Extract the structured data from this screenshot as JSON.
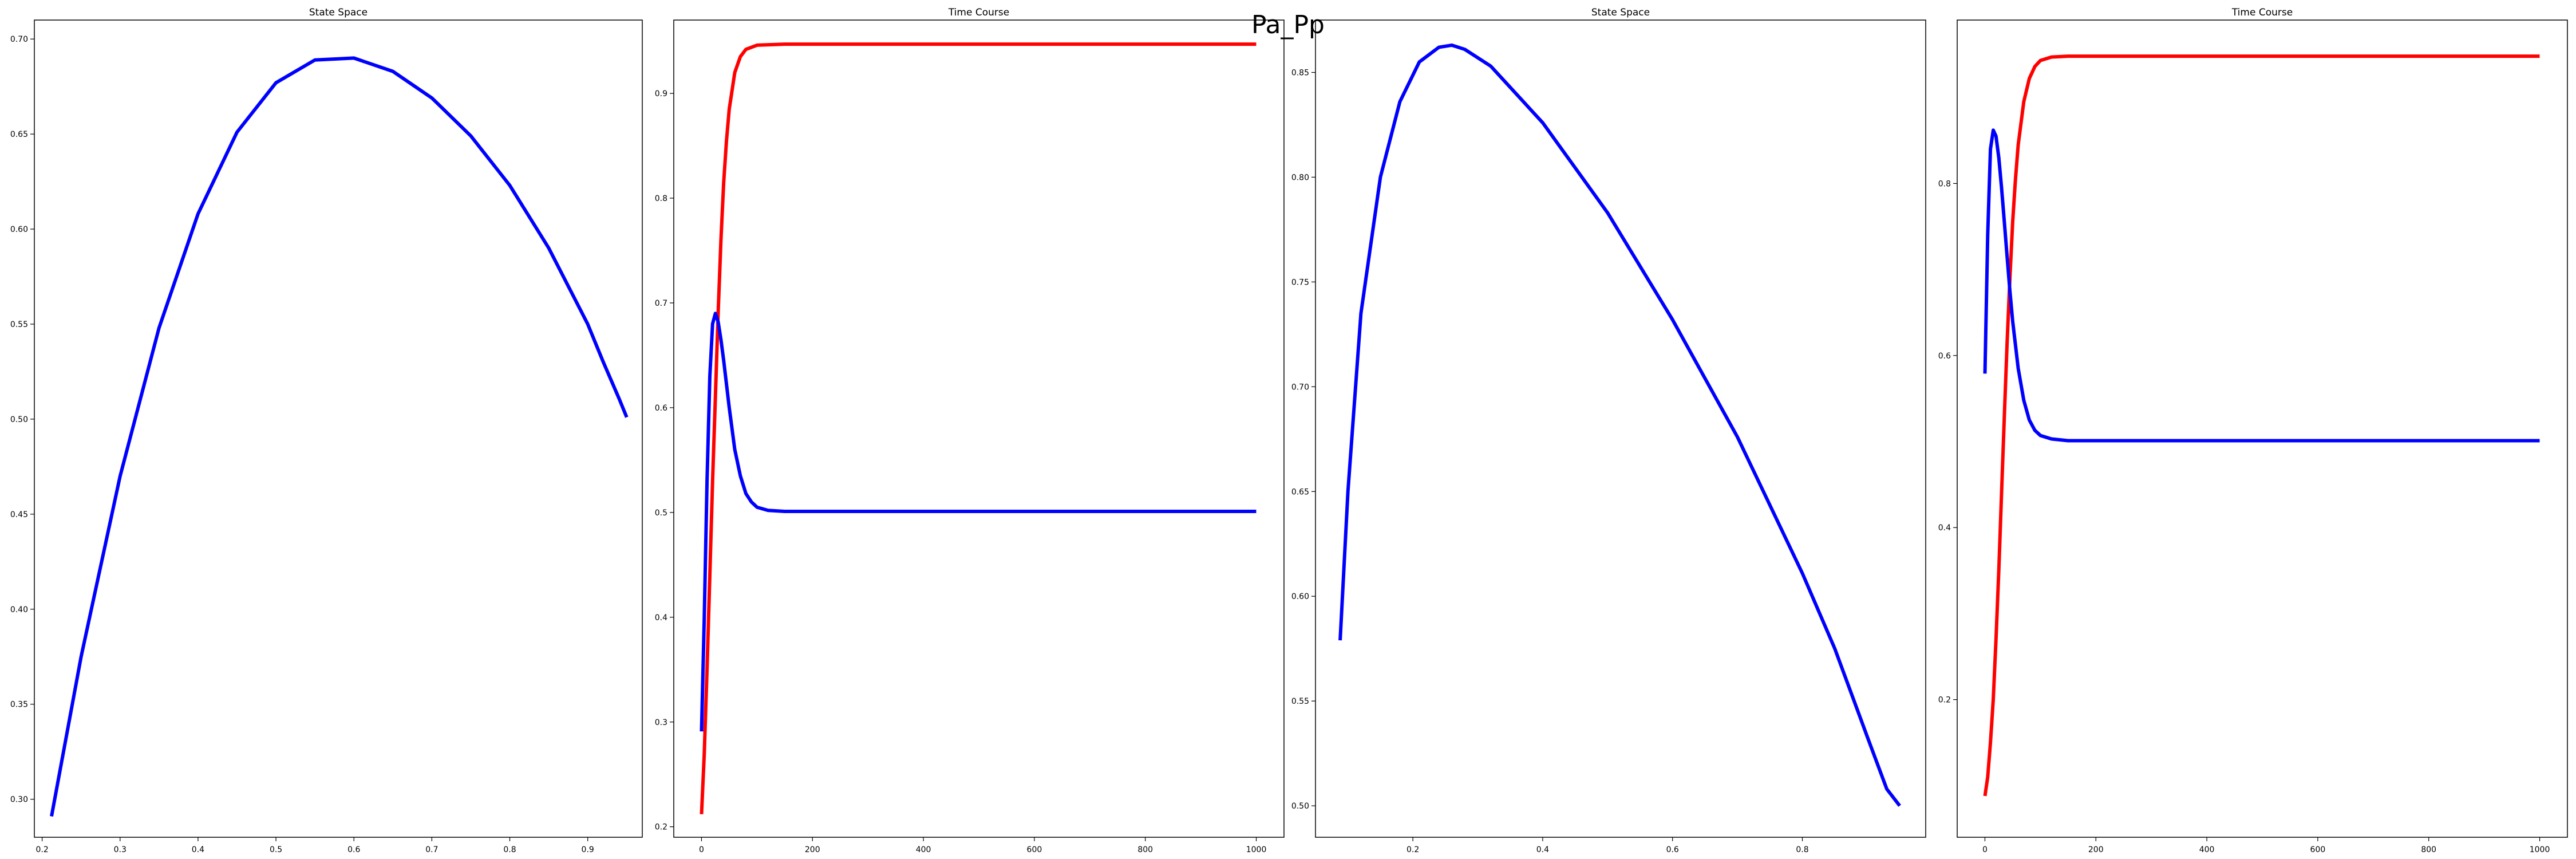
{
  "figure": {
    "suptitle": "Pa_Pp"
  },
  "chart_data": [
    {
      "type": "line",
      "title": "State Space",
      "xlabel": "",
      "ylabel": "",
      "xlim": [
        0.19,
        0.97
      ],
      "ylim": [
        0.28,
        0.71
      ],
      "x_ticks": [
        0.2,
        0.3,
        0.4,
        0.5,
        0.6,
        0.7,
        0.8,
        0.9
      ],
      "y_ticks": [
        0.3,
        0.35,
        0.4,
        0.45,
        0.5,
        0.55,
        0.6,
        0.65,
        0.7
      ],
      "x_tick_labels": [
        "0.2",
        "0.3",
        "0.4",
        "0.5",
        "0.6",
        "0.7",
        "0.8",
        "0.9"
      ],
      "y_tick_labels": [
        "0.30",
        "0.35",
        "0.40",
        "0.45",
        "0.50",
        "0.55",
        "0.60",
        "0.65",
        "0.70"
      ],
      "series": [
        {
          "color": "#0000ff",
          "x": [
            0.212,
            0.25,
            0.3,
            0.35,
            0.4,
            0.45,
            0.5,
            0.55,
            0.6,
            0.65,
            0.7,
            0.75,
            0.8,
            0.85,
            0.9,
            0.92,
            0.94,
            0.95
          ],
          "y": [
            0.291,
            0.375,
            0.47,
            0.548,
            0.608,
            0.651,
            0.677,
            0.689,
            0.69,
            0.683,
            0.669,
            0.649,
            0.623,
            0.59,
            0.55,
            0.53,
            0.511,
            0.501
          ]
        }
      ]
    },
    {
      "type": "line",
      "title": "Time Course",
      "xlabel": "",
      "ylabel": "",
      "xlim": [
        -50,
        1050
      ],
      "ylim": [
        0.19,
        0.97
      ],
      "x_ticks": [
        0,
        200,
        400,
        600,
        800,
        1000
      ],
      "y_ticks": [
        0.2,
        0.3,
        0.4,
        0.5,
        0.6,
        0.7,
        0.8,
        0.9
      ],
      "x_tick_labels": [
        "0",
        "200",
        "400",
        "600",
        "800",
        "1000"
      ],
      "y_tick_labels": [
        "0.2",
        "0.3",
        "0.4",
        "0.5",
        "0.6",
        "0.7",
        "0.8",
        "0.9"
      ],
      "series": [
        {
          "color": "#ff0000",
          "x": [
            0,
            5,
            10,
            15,
            20,
            25,
            30,
            35,
            40,
            45,
            50,
            60,
            70,
            80,
            100,
            150,
            200,
            1000
          ],
          "y": [
            0.212,
            0.27,
            0.35,
            0.44,
            0.53,
            0.61,
            0.69,
            0.76,
            0.815,
            0.855,
            0.885,
            0.92,
            0.935,
            0.942,
            0.946,
            0.947,
            0.947,
            0.947
          ]
        },
        {
          "color": "#0000ff",
          "x": [
            0,
            5,
            10,
            15,
            20,
            25,
            30,
            35,
            40,
            50,
            60,
            70,
            80,
            90,
            100,
            120,
            150,
            200,
            1000
          ],
          "y": [
            0.291,
            0.4,
            0.53,
            0.63,
            0.68,
            0.69,
            0.682,
            0.665,
            0.645,
            0.6,
            0.56,
            0.535,
            0.518,
            0.51,
            0.505,
            0.502,
            0.501,
            0.501,
            0.501
          ]
        }
      ]
    },
    {
      "type": "line",
      "title": "State Space",
      "xlabel": "",
      "ylabel": "",
      "xlim": [
        0.05,
        0.99
      ],
      "ylim": [
        0.485,
        0.875
      ],
      "x_ticks": [
        0.2,
        0.4,
        0.6,
        0.8
      ],
      "y_ticks": [
        0.5,
        0.55,
        0.6,
        0.65,
        0.7,
        0.75,
        0.8,
        0.85
      ],
      "x_tick_labels": [
        "0.2",
        "0.4",
        "0.6",
        "0.8"
      ],
      "y_tick_labels": [
        "0.50",
        "0.55",
        "0.60",
        "0.65",
        "0.70",
        "0.75",
        "0.80",
        "0.85"
      ],
      "series": [
        {
          "color": "#0000ff",
          "x": [
            0.088,
            0.1,
            0.12,
            0.15,
            0.18,
            0.21,
            0.24,
            0.26,
            0.28,
            0.32,
            0.4,
            0.5,
            0.6,
            0.7,
            0.8,
            0.85,
            0.9,
            0.93,
            0.95
          ],
          "y": [
            0.579,
            0.65,
            0.735,
            0.8,
            0.836,
            0.855,
            0.862,
            0.863,
            0.861,
            0.853,
            0.826,
            0.783,
            0.732,
            0.676,
            0.611,
            0.575,
            0.533,
            0.508,
            0.5
          ]
        }
      ]
    },
    {
      "type": "line",
      "title": "Time Course",
      "xlabel": "",
      "ylabel": "",
      "xlim": [
        -50,
        1050
      ],
      "ylim": [
        0.04,
        0.99
      ],
      "x_ticks": [
        0,
        200,
        400,
        600,
        800,
        1000
      ],
      "y_ticks": [
        0.2,
        0.4,
        0.6,
        0.8
      ],
      "x_tick_labels": [
        "0",
        "200",
        "400",
        "600",
        "800",
        "1000"
      ],
      "y_tick_labels": [
        "0.2",
        "0.4",
        "0.6",
        "0.8"
      ],
      "series": [
        {
          "color": "#ff0000",
          "x": [
            0,
            5,
            10,
            15,
            20,
            25,
            30,
            35,
            40,
            45,
            50,
            55,
            60,
            70,
            80,
            90,
            100,
            120,
            150,
            200,
            1000
          ],
          "y": [
            0.088,
            0.11,
            0.15,
            0.2,
            0.27,
            0.35,
            0.44,
            0.53,
            0.615,
            0.69,
            0.755,
            0.805,
            0.845,
            0.895,
            0.922,
            0.936,
            0.943,
            0.947,
            0.948,
            0.948,
            0.948
          ]
        },
        {
          "color": "#0000ff",
          "x": [
            0,
            5,
            10,
            15,
            20,
            25,
            30,
            35,
            40,
            45,
            50,
            60,
            70,
            80,
            90,
            100,
            120,
            150,
            200,
            1000
          ],
          "y": [
            0.579,
            0.74,
            0.84,
            0.862,
            0.855,
            0.83,
            0.795,
            0.755,
            0.715,
            0.675,
            0.64,
            0.585,
            0.548,
            0.525,
            0.513,
            0.507,
            0.503,
            0.501,
            0.501,
            0.501
          ]
        }
      ]
    }
  ]
}
